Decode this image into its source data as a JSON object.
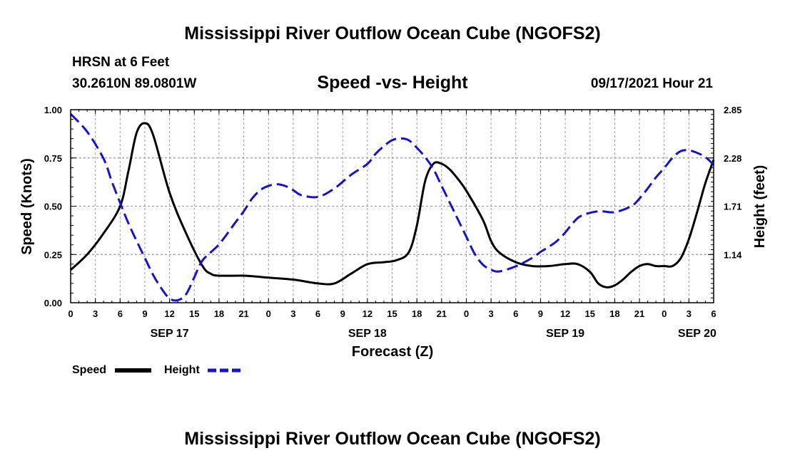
{
  "header": {
    "title": "Mississippi River Outflow Ocean Cube (NGOFS2)",
    "station": "HRSN at 6 Feet",
    "coords": "30.2610N  89.0801W",
    "subtitle": "Speed -vs- Height",
    "datetime": "09/17/2021 Hour 21"
  },
  "footer": {
    "title": "Mississippi River Outflow Ocean Cube (NGOFS2)"
  },
  "chart_data": {
    "type": "line",
    "title": "Speed -vs- Height",
    "xlabel": "Forecast (Z)",
    "ylabel": "Speed (Knots)",
    "y2label": "Height (feet)",
    "grid": true,
    "legend_position": "bottom-left",
    "x_range_hours": [
      0,
      78
    ],
    "x_ticks": [
      {
        "h": 0,
        "label": "0"
      },
      {
        "h": 3,
        "label": "3"
      },
      {
        "h": 6,
        "label": "6"
      },
      {
        "h": 9,
        "label": "9"
      },
      {
        "h": 12,
        "label": "12"
      },
      {
        "h": 15,
        "label": "15"
      },
      {
        "h": 18,
        "label": "18"
      },
      {
        "h": 21,
        "label": "21"
      },
      {
        "h": 24,
        "label": "0"
      },
      {
        "h": 27,
        "label": "3"
      },
      {
        "h": 30,
        "label": "6"
      },
      {
        "h": 33,
        "label": "9"
      },
      {
        "h": 36,
        "label": "12"
      },
      {
        "h": 39,
        "label": "15"
      },
      {
        "h": 42,
        "label": "18"
      },
      {
        "h": 45,
        "label": "21"
      },
      {
        "h": 48,
        "label": "0"
      },
      {
        "h": 51,
        "label": "3"
      },
      {
        "h": 54,
        "label": "6"
      },
      {
        "h": 57,
        "label": "9"
      },
      {
        "h": 60,
        "label": "12"
      },
      {
        "h": 63,
        "label": "15"
      },
      {
        "h": 66,
        "label": "18"
      },
      {
        "h": 69,
        "label": "21"
      },
      {
        "h": 72,
        "label": "0"
      },
      {
        "h": 75,
        "label": "3"
      },
      {
        "h": 78,
        "label": "6"
      }
    ],
    "date_labels": [
      {
        "h": 12,
        "label": "SEP 17"
      },
      {
        "h": 36,
        "label": "SEP 18"
      },
      {
        "h": 60,
        "label": "SEP 19"
      },
      {
        "h": 76,
        "label": "SEP 20"
      }
    ],
    "y_left": {
      "range": [
        0,
        1
      ],
      "ticks": [
        0,
        0.25,
        0.5,
        0.75,
        1.0
      ],
      "tick_labels": [
        "0.00",
        "0.25",
        "0.50",
        "0.75",
        "1.00"
      ]
    },
    "y_right": {
      "range": [
        0.57,
        2.85
      ],
      "ticks": [
        1.14,
        1.71,
        2.28,
        2.85
      ],
      "tick_labels": [
        "1.14",
        "1.71",
        "2.28",
        "2.85"
      ]
    },
    "series": [
      {
        "name": "Speed",
        "color": "#000000",
        "dash": "solid",
        "axis": "left",
        "x": [
          0,
          2,
          4,
          6,
          7,
          8,
          9,
          10,
          12,
          14,
          16,
          17,
          18,
          21,
          24,
          27,
          30,
          32,
          34,
          36,
          38,
          39.5,
          41,
          42,
          43,
          44,
          45,
          46,
          47,
          48,
          50,
          51,
          52,
          54,
          56,
          58,
          60,
          61.5,
          63,
          64,
          65,
          66,
          67,
          68,
          69,
          70,
          71,
          72,
          73,
          74,
          75,
          76,
          77,
          78
        ],
        "values": [
          0.17,
          0.25,
          0.36,
          0.5,
          0.68,
          0.88,
          0.93,
          0.87,
          0.57,
          0.36,
          0.19,
          0.15,
          0.14,
          0.14,
          0.13,
          0.12,
          0.1,
          0.1,
          0.15,
          0.2,
          0.21,
          0.22,
          0.26,
          0.4,
          0.63,
          0.72,
          0.72,
          0.69,
          0.64,
          0.58,
          0.43,
          0.32,
          0.26,
          0.21,
          0.19,
          0.19,
          0.2,
          0.2,
          0.16,
          0.1,
          0.08,
          0.09,
          0.12,
          0.16,
          0.19,
          0.2,
          0.19,
          0.19,
          0.19,
          0.23,
          0.33,
          0.47,
          0.62,
          0.74
        ]
      },
      {
        "name": "Height",
        "color": "#1414cc",
        "dash": "dashed",
        "axis": "right",
        "x": [
          0,
          2,
          4,
          5,
          6,
          7,
          8,
          9,
          10,
          11,
          12,
          13,
          14,
          15,
          16,
          18,
          20,
          21,
          22,
          23,
          24,
          25,
          26,
          27,
          28,
          30,
          32,
          34,
          36,
          37,
          38,
          39,
          40,
          41,
          42,
          43,
          44,
          45,
          46,
          47,
          48,
          49,
          50,
          51,
          52,
          54,
          56,
          57,
          58,
          59,
          60,
          61,
          62,
          64,
          66,
          68,
          69,
          70,
          71,
          72,
          73,
          74,
          75,
          76,
          77,
          78
        ],
        "values": [
          2.8,
          2.59,
          2.27,
          2.0,
          1.75,
          1.51,
          1.3,
          1.1,
          0.9,
          0.74,
          0.62,
          0.6,
          0.67,
          0.87,
          1.07,
          1.26,
          1.52,
          1.65,
          1.8,
          1.9,
          1.95,
          1.97,
          1.95,
          1.9,
          1.84,
          1.82,
          1.92,
          2.08,
          2.21,
          2.33,
          2.42,
          2.49,
          2.51,
          2.49,
          2.4,
          2.29,
          2.15,
          1.95,
          1.75,
          1.55,
          1.35,
          1.15,
          1.02,
          0.96,
          0.94,
          1.0,
          1.1,
          1.17,
          1.23,
          1.3,
          1.4,
          1.52,
          1.6,
          1.65,
          1.64,
          1.71,
          1.8,
          1.92,
          2.05,
          2.16,
          2.28,
          2.36,
          2.37,
          2.34,
          2.29,
          2.2
        ]
      }
    ]
  },
  "legend": [
    {
      "label": "Speed",
      "color": "#000000",
      "dash": "solid"
    },
    {
      "label": "Height",
      "color": "#1414cc",
      "dash": "dashed"
    }
  ]
}
